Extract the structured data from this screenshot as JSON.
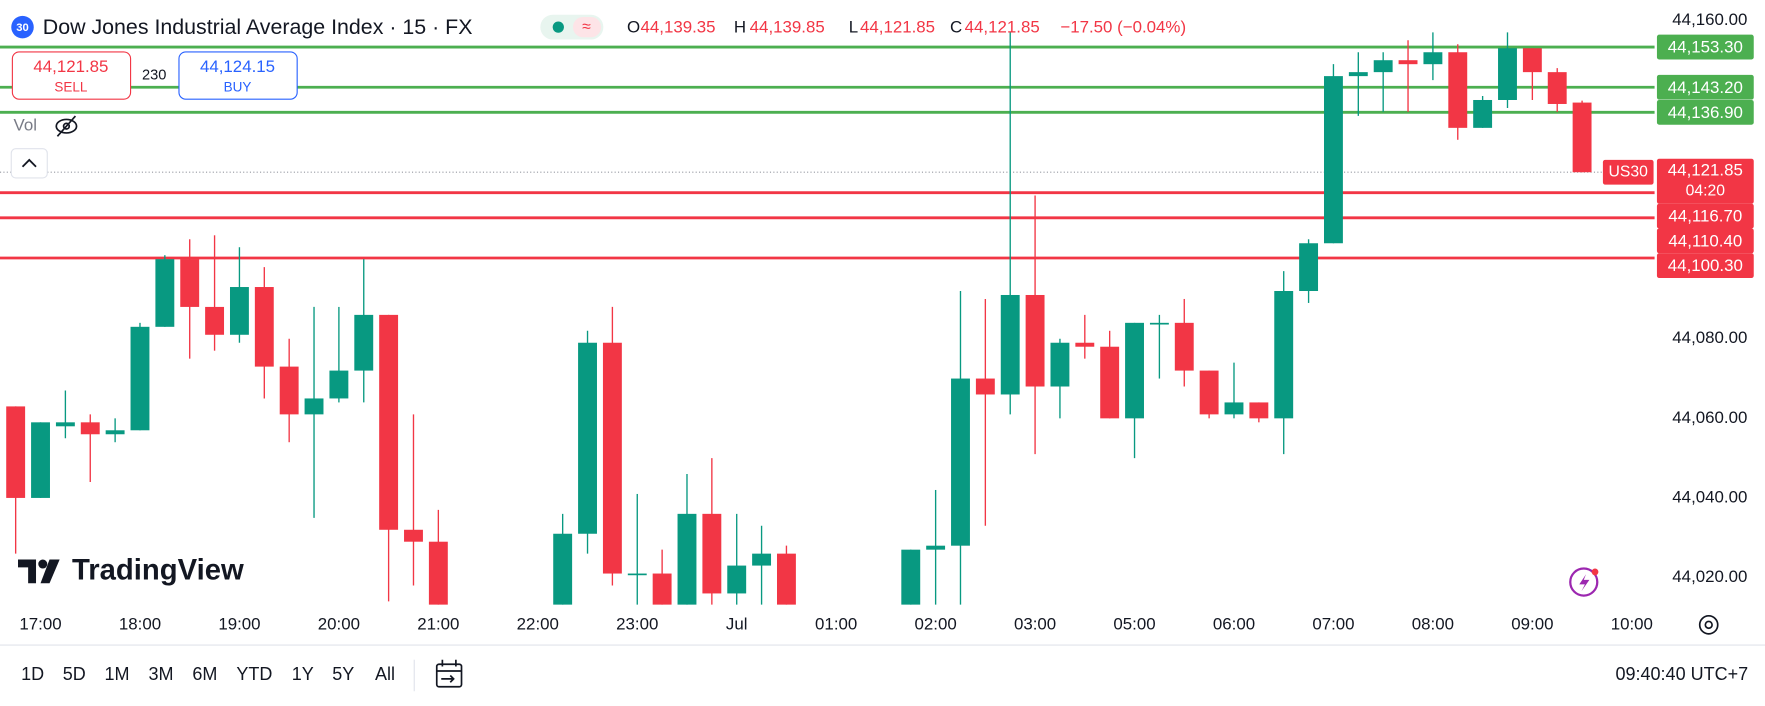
{
  "header": {
    "badge": "30",
    "title": "Dow Jones Industrial Average Index · 15 · FX",
    "o_key": "O",
    "o": "44,139.35",
    "h_key": "H",
    "h": "44,139.85",
    "l_key": "L",
    "l": "44,121.85",
    "c_key": "C",
    "c": "44,121.85",
    "change": "−17.50 (−0.04%)"
  },
  "trade": {
    "sell_price": "44,121.85",
    "sell": "SELL",
    "spread": "230",
    "buy_price": "44,124.15",
    "buy": "BUY"
  },
  "vol": "Vol",
  "brand": "TradingView",
  "ranges": [
    "1D",
    "5D",
    "1M",
    "3M",
    "6M",
    "YTD",
    "1Y",
    "5Y",
    "All"
  ],
  "clock": "09:40:40 UTC+7",
  "chart_data": {
    "type": "candlestick",
    "up_color": "#089981",
    "down_color": "#f23645",
    "x": [
      0,
      1,
      2,
      3,
      4,
      5,
      6,
      7,
      8,
      9,
      10,
      11,
      12,
      13,
      14,
      15,
      16,
      17,
      22,
      23,
      24,
      25,
      26,
      27,
      28,
      29,
      30,
      31,
      36,
      37,
      38,
      39,
      40,
      41,
      42,
      43,
      44,
      45,
      46,
      47,
      48,
      49,
      50,
      51,
      52,
      53,
      54,
      55,
      56,
      57,
      58,
      59,
      60,
      61,
      62,
      63
    ],
    "open": [
      44063,
      44040,
      44058,
      44059,
      44056,
      44057,
      44083,
      44100,
      44088,
      44081,
      44093,
      44073,
      44061,
      44065,
      44072,
      44086,
      44032,
      44029,
      44010,
      44031,
      44079,
      44021,
      44021,
      44012,
      44036,
      44016,
      44023,
      44026,
      44012,
      44027,
      44028,
      44070,
      44066,
      44091,
      44068,
      44079,
      44078,
      44060,
      44084,
      44084,
      44072,
      44061,
      44064,
      44060,
      44092,
      44104,
      44146,
      44147,
      44150,
      44149,
      44152,
      44133,
      44140,
      44153,
      44147,
      44139.35
    ],
    "high": [
      44063,
      44059,
      44067,
      44061,
      44060,
      44084,
      44101,
      44105,
      44106,
      44103,
      44098,
      44080,
      44088,
      44088,
      44100,
      44086,
      44061,
      44037,
      44036,
      44082,
      44088,
      44041,
      44027,
      44046,
      44050,
      44036,
      44033,
      44028,
      44027,
      44042,
      44092,
      44090,
      44157,
      44116,
      44080,
      44086,
      44082,
      44084,
      44086,
      44090,
      44072,
      44074,
      44064,
      44097,
      44105,
      44149,
      44152,
      44152,
      44155,
      44157,
      44154,
      44141,
      44157,
      44153,
      44148,
      44139.85
    ],
    "low": [
      44026,
      44040,
      44055,
      44044,
      44054,
      44057,
      44083,
      44075,
      44077,
      44079,
      44065,
      44054,
      44035,
      44064,
      44064,
      44014,
      44018,
      44005,
      44005,
      44026,
      44018,
      44012,
      44008,
      44010,
      44013,
      44013,
      44013,
      44010,
      44010,
      44013,
      44013,
      44033,
      44061,
      44051,
      44060,
      44075,
      44060,
      44050,
      44070,
      44068,
      44060,
      44060,
      44059,
      44051,
      44089,
      44104,
      44136,
      44137,
      44137,
      44145,
      44130,
      44133,
      44138,
      44140,
      44137,
      44121.85
    ],
    "close": [
      44040,
      44059,
      44059,
      44056,
      44057,
      44083,
      44100,
      44088,
      44081,
      44093,
      44073,
      44061,
      44065,
      44072,
      44086,
      44032,
      44029,
      44010,
      44031,
      44079,
      44021,
      44021,
      44012,
      44036,
      44016,
      44023,
      44026,
      44012,
      44027,
      44028,
      44070,
      44066,
      44091,
      44068,
      44079,
      44078,
      44060,
      44084,
      44084,
      44072,
      44061,
      44064,
      44060,
      44092,
      44104,
      44146,
      44147,
      44150,
      44149,
      44152,
      44133,
      44140,
      44153,
      44147,
      44139,
      44121.85
    ],
    "xlim": [
      -0.63,
      65.92
    ],
    "xticks": [
      {
        "value": 1,
        "label": "17:00"
      },
      {
        "value": 5,
        "label": "18:00"
      },
      {
        "value": 9,
        "label": "19:00"
      },
      {
        "value": 13,
        "label": "20:00"
      },
      {
        "value": 17,
        "label": "21:00"
      },
      {
        "value": 21,
        "label": "22:00"
      },
      {
        "value": 25,
        "label": "23:00"
      },
      {
        "value": 29,
        "label": "Jul"
      },
      {
        "value": 33,
        "label": "01:00"
      },
      {
        "value": 37,
        "label": "02:00"
      },
      {
        "value": 41,
        "label": "03:00"
      },
      {
        "value": 45,
        "label": "05:00"
      },
      {
        "value": 49,
        "label": "06:00"
      },
      {
        "value": 53,
        "label": "07:00"
      },
      {
        "value": 57,
        "label": "08:00"
      },
      {
        "value": 61,
        "label": "09:00"
      },
      {
        "value": 65,
        "label": "10:00"
      }
    ],
    "ylim": [
      44013.2,
      44165.1
    ],
    "yticks": [
      {
        "value": 44160,
        "label": "44,160.00"
      },
      {
        "value": 44080,
        "label": "44,080.00"
      },
      {
        "value": 44060,
        "label": "44,060.00"
      },
      {
        "value": 44040,
        "label": "44,040.00"
      },
      {
        "value": 44020,
        "label": "44,020.00"
      }
    ],
    "levels": [
      {
        "value": 44153.3,
        "label": "44,153.30",
        "color": "#4caf50"
      },
      {
        "value": 44143.2,
        "label": "44,143.20",
        "color": "#4caf50"
      },
      {
        "value": 44136.9,
        "label": "44,136.90",
        "color": "#4caf50"
      },
      {
        "value": 44116.7,
        "label": "44,116.70",
        "color": "#f23645"
      },
      {
        "value": 44110.4,
        "label": "44,110.40",
        "color": "#f23645"
      },
      {
        "value": 44100.3,
        "label": "44,100.30",
        "color": "#f23645"
      }
    ],
    "last_price": {
      "value": 44121.85,
      "label": "44,121.85",
      "symbol": "US30",
      "countdown": "04:20",
      "color": "#f23645"
    }
  }
}
